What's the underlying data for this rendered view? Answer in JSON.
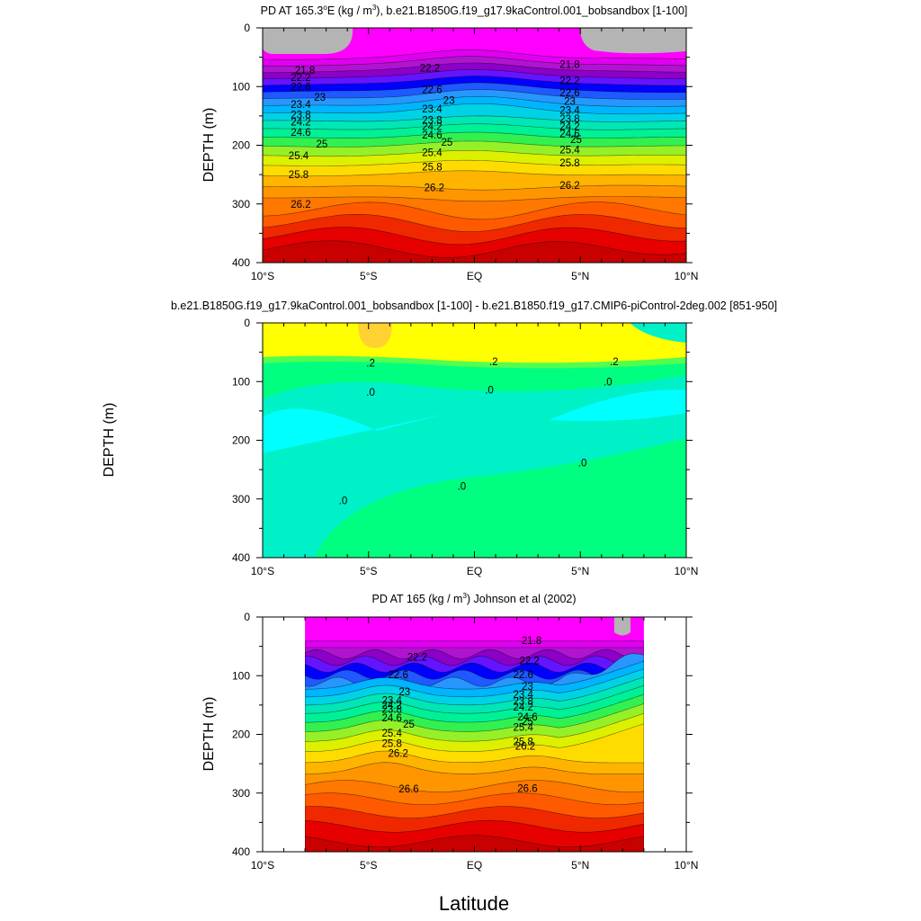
{
  "figure": {
    "xlabel": "Latitude"
  },
  "colors": {
    "land": "#b4b4b4",
    "temp_fills": [
      "#ff00ff",
      "#e000f0",
      "#b014d0",
      "#8c00c8",
      "#6414ff",
      "#0000ff",
      "#1e5aff",
      "#2896ff",
      "#00b4ff",
      "#00d2e6",
      "#00e6b4",
      "#00f096",
      "#32f050",
      "#96f028",
      "#dcf000",
      "#ffdc00",
      "#ffb400",
      "#ff9600",
      "#ff7800",
      "#ff5a00",
      "#f02800",
      "#e60000",
      "#c80000"
    ],
    "diff_fills": [
      "#00f0c8",
      "#00ffff",
      "#00ff80",
      "#50ff50",
      "#ffff00",
      "#ffd232"
    ]
  },
  "chart_data": [
    {
      "type": "contour",
      "title_pre": "PD AT 165.3",
      "title_sup1": "o",
      "title_mid": "E (kg / m",
      "title_sup2": "3",
      "title_post": "), b.e21.B1850G.f19_g17.9kaControl.001_bobsandbox [1-100]",
      "ylabel": "DEPTH (m)",
      "xlim": [
        -10,
        10
      ],
      "ylim": [
        400,
        0
      ],
      "x_ticks": [
        "10°S",
        "5°S",
        "EQ",
        "5°N",
        "10°N"
      ],
      "y_ticks": [
        "0",
        "100",
        "200",
        "300",
        "400"
      ],
      "contour_labels": [
        {
          "text": "21.8",
          "lat": -8.0,
          "depth": 72
        },
        {
          "text": "22.2",
          "lat": -8.2,
          "depth": 84
        },
        {
          "text": "22.6",
          "lat": -8.2,
          "depth": 100
        },
        {
          "text": "23",
          "lat": -7.3,
          "depth": 118
        },
        {
          "text": "23.4",
          "lat": -8.2,
          "depth": 130
        },
        {
          "text": "23.8",
          "lat": -8.2,
          "depth": 148
        },
        {
          "text": "24.2",
          "lat": -8.2,
          "depth": 160
        },
        {
          "text": "24.6",
          "lat": -8.2,
          "depth": 178
        },
        {
          "text": "25",
          "lat": -7.2,
          "depth": 198
        },
        {
          "text": "25.4",
          "lat": -8.3,
          "depth": 218
        },
        {
          "text": "25.8",
          "lat": -8.3,
          "depth": 250
        },
        {
          "text": "26.2",
          "lat": -8.2,
          "depth": 300
        },
        {
          "text": "22.2",
          "lat": -2.1,
          "depth": 68
        },
        {
          "text": "22.6",
          "lat": -2.0,
          "depth": 105
        },
        {
          "text": "23",
          "lat": -1.2,
          "depth": 123
        },
        {
          "text": "23.4",
          "lat": -2.0,
          "depth": 138
        },
        {
          "text": "23.8",
          "lat": -2.0,
          "depth": 157
        },
        {
          "text": "24.2",
          "lat": -2.0,
          "depth": 168
        },
        {
          "text": "24.6",
          "lat": -2.0,
          "depth": 182
        },
        {
          "text": "25",
          "lat": -1.3,
          "depth": 195
        },
        {
          "text": "25.4",
          "lat": -2.0,
          "depth": 212
        },
        {
          "text": "25.8",
          "lat": -2.0,
          "depth": 237
        },
        {
          "text": "26.2",
          "lat": -1.9,
          "depth": 272
        },
        {
          "text": "21.8",
          "lat": 4.5,
          "depth": 62
        },
        {
          "text": "22.2",
          "lat": 4.5,
          "depth": 90
        },
        {
          "text": "22.6",
          "lat": 4.5,
          "depth": 110
        },
        {
          "text": "23",
          "lat": 4.5,
          "depth": 125
        },
        {
          "text": "23.4",
          "lat": 4.5,
          "depth": 140
        },
        {
          "text": "23.8",
          "lat": 4.5,
          "depth": 155
        },
        {
          "text": "24.2",
          "lat": 4.5,
          "depth": 168
        },
        {
          "text": "24.6",
          "lat": 4.5,
          "depth": 180
        },
        {
          "text": "25",
          "lat": 4.8,
          "depth": 190
        },
        {
          "text": "25.4",
          "lat": 4.5,
          "depth": 208
        },
        {
          "text": "25.8",
          "lat": 4.5,
          "depth": 230
        },
        {
          "text": "26.2",
          "lat": 4.5,
          "depth": 268
        }
      ]
    },
    {
      "type": "contour",
      "title": "b.e21.B1850G.f19_g17.9kaControl.001_bobsandbox [1-100] - b.e21.B1850.f19_g17.CMIP6-piControl-2deg.002 [851-950]",
      "ylabel": "DEPTH (m)",
      "xlim": [
        -10,
        10
      ],
      "ylim": [
        400,
        0
      ],
      "x_ticks": [
        "10°S",
        "5°S",
        "EQ",
        "5°N",
        "10°N"
      ],
      "y_ticks": [
        "0",
        "100",
        "200",
        "300",
        "400"
      ],
      "contour_labels": [
        {
          "text": ".2",
          "lat": -4.9,
          "depth": 68
        },
        {
          "text": ".2",
          "lat": 0.9,
          "depth": 66
        },
        {
          "text": ".2",
          "lat": 6.6,
          "depth": 66
        },
        {
          "text": ".0",
          "lat": -4.9,
          "depth": 118
        },
        {
          "text": ".0",
          "lat": 0.7,
          "depth": 114
        },
        {
          "text": ".0",
          "lat": 6.3,
          "depth": 100
        },
        {
          "text": ".0",
          "lat": -6.2,
          "depth": 303
        },
        {
          "text": ".0",
          "lat": -0.6,
          "depth": 278
        },
        {
          "text": ".0",
          "lat": 5.1,
          "depth": 238
        }
      ]
    },
    {
      "type": "contour",
      "title_pre": "PD AT 165 (kg / m",
      "title_sup": "3",
      "title_post": ") Johnson et al (2002)",
      "ylabel": "DEPTH (m)",
      "xlim": [
        -10,
        10
      ],
      "ylim": [
        400,
        0
      ],
      "data_lat_range": [
        -8,
        8
      ],
      "x_ticks": [
        "10°S",
        "5°S",
        "EQ",
        "5°N",
        "10°N"
      ],
      "y_ticks": [
        "0",
        "100",
        "200",
        "300",
        "400"
      ],
      "contour_labels": [
        {
          "text": "22.2",
          "lat": -2.7,
          "depth": 68
        },
        {
          "text": "22.6",
          "lat": -3.6,
          "depth": 98
        },
        {
          "text": "23",
          "lat": -3.3,
          "depth": 127
        },
        {
          "text": "23.4",
          "lat": -3.9,
          "depth": 142
        },
        {
          "text": "23.8",
          "lat": -3.9,
          "depth": 157
        },
        {
          "text": "24.2",
          "lat": -3.9,
          "depth": 150
        },
        {
          "text": "24.6",
          "lat": -3.9,
          "depth": 172
        },
        {
          "text": "25",
          "lat": -3.1,
          "depth": 182
        },
        {
          "text": "25.4",
          "lat": -3.9,
          "depth": 198
        },
        {
          "text": "25.8",
          "lat": -3.9,
          "depth": 215
        },
        {
          "text": "26.2",
          "lat": -3.6,
          "depth": 232
        },
        {
          "text": "26.6",
          "lat": -3.1,
          "depth": 293
        },
        {
          "text": "21.8",
          "lat": 2.7,
          "depth": 40
        },
        {
          "text": "22.2",
          "lat": 2.6,
          "depth": 74
        },
        {
          "text": "22.6",
          "lat": 2.3,
          "depth": 98
        },
        {
          "text": "23",
          "lat": 2.5,
          "depth": 118
        },
        {
          "text": "23.4",
          "lat": 2.3,
          "depth": 132
        },
        {
          "text": "23.8",
          "lat": 2.3,
          "depth": 143
        },
        {
          "text": "24.2",
          "lat": 2.3,
          "depth": 153
        },
        {
          "text": "24.6",
          "lat": 2.5,
          "depth": 170
        },
        {
          "text": "25",
          "lat": 2.5,
          "depth": 178
        },
        {
          "text": "25.4",
          "lat": 2.3,
          "depth": 188
        },
        {
          "text": "25.8",
          "lat": 2.3,
          "depth": 212
        },
        {
          "text": "26.2",
          "lat": 2.4,
          "depth": 220
        },
        {
          "text": "26.6",
          "lat": 2.5,
          "depth": 292
        }
      ]
    }
  ]
}
